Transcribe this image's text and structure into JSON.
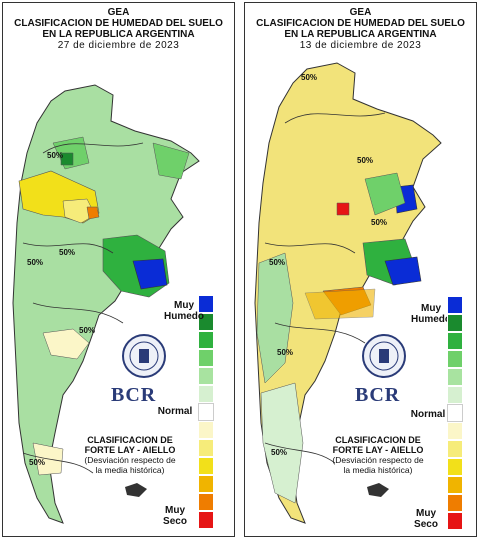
{
  "header": {
    "org": "GEA",
    "title_line1": "CLASIFICACION DE HUMEDAD DEL SUELO",
    "title_line2": "EN LA REPUBLICA ARGENTINA"
  },
  "panels": [
    {
      "date": "27 de diciembre de 2023",
      "contour_labels": [
        "50%",
        "50%",
        "50%",
        "50%",
        "50%"
      ],
      "dominant_color": "#9ed89a"
    },
    {
      "date": "13 de diciembre de 2023",
      "contour_labels": [
        "50%",
        "50%",
        "50%",
        "50%",
        "50%",
        "50%"
      ],
      "dominant_color": "#f2e37a"
    }
  ],
  "legend": {
    "top_label_1": "Muy",
    "top_label_2": "Humedo",
    "middle_label": "Normal",
    "bottom_label_1": "Muy",
    "bottom_label_2": "Seco",
    "colors": [
      "#0a2cd6",
      "#1a8a2e",
      "#2fb13f",
      "#6fd06a",
      "#a8e3a0",
      "#d6f0d0",
      "#ffffff",
      "#fbf6c8",
      "#f6ec7a",
      "#f2e01a",
      "#f0b400",
      "#ef7d00",
      "#e61515"
    ]
  },
  "brand": {
    "name": "BCR",
    "seal_text": "BOLSA DE COMERCIO DE ROSARIO"
  },
  "classification": {
    "line1": "CLASIFICACION DE",
    "line2": "FORTE LAY - AIELLO",
    "line3": "(Desviación respecto de",
    "line4": "la media histórica)"
  }
}
